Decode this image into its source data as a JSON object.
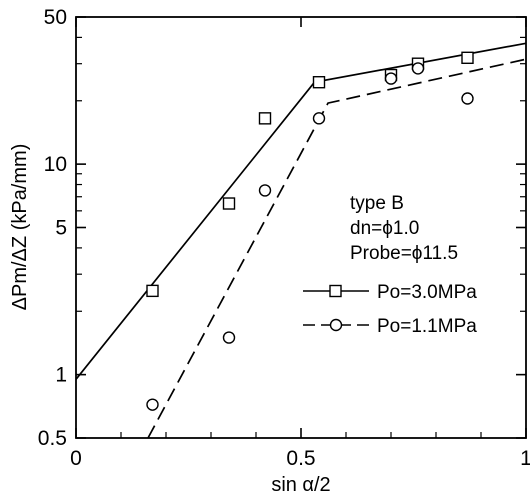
{
  "chart_data": {
    "type": "scatter",
    "x_scale": "linear",
    "y_scale": "log",
    "xlim": [
      0,
      1
    ],
    "ylim": [
      0.5,
      50
    ],
    "xlabel": "sin α/2",
    "ylabel": "ΔPm/ΔZ (kPa/mm)",
    "x_ticks": [
      {
        "value": 0,
        "label": "0"
      },
      {
        "value": 0.5,
        "label": "0.5"
      },
      {
        "value": 1,
        "label": "1"
      }
    ],
    "y_ticks": [
      {
        "value": 0.5,
        "label": "0.5"
      },
      {
        "value": 1,
        "label": "1"
      },
      {
        "value": 5,
        "label": "5"
      },
      {
        "value": 10,
        "label": "10"
      },
      {
        "value": 50,
        "label": "50"
      }
    ],
    "grid": false,
    "annotations": [
      "type B",
      "dn=ϕ1.0",
      "Probe=ϕ11.5"
    ],
    "legend_position": "right",
    "series": [
      {
        "name": "Po=3.0MPa",
        "marker": "square",
        "line_style": "solid",
        "color": "#000000",
        "points": [
          {
            "x": 0.17,
            "y": 2.5
          },
          {
            "x": 0.34,
            "y": 6.5
          },
          {
            "x": 0.42,
            "y": 16.5
          },
          {
            "x": 0.54,
            "y": 24.5
          },
          {
            "x": 0.7,
            "y": 26.5
          },
          {
            "x": 0.76,
            "y": 30.0
          },
          {
            "x": 0.87,
            "y": 32.0
          }
        ],
        "fit_line": [
          {
            "x": 0,
            "y": 0.95
          },
          {
            "x": 0.53,
            "y": 24.5
          },
          {
            "x": 1.0,
            "y": 37.5
          }
        ]
      },
      {
        "name": "Po=1.1MPa",
        "marker": "circle",
        "line_style": "dashed",
        "color": "#000000",
        "points": [
          {
            "x": 0.17,
            "y": 0.72
          },
          {
            "x": 0.34,
            "y": 1.5
          },
          {
            "x": 0.42,
            "y": 7.5
          },
          {
            "x": 0.54,
            "y": 16.5
          },
          {
            "x": 0.7,
            "y": 25.5
          },
          {
            "x": 0.76,
            "y": 28.5
          },
          {
            "x": 0.87,
            "y": 20.5
          }
        ],
        "fit_line": [
          {
            "x": 0.16,
            "y": 0.5
          },
          {
            "x": 0.56,
            "y": 19.5
          },
          {
            "x": 1.0,
            "y": 31.5
          }
        ]
      }
    ]
  }
}
